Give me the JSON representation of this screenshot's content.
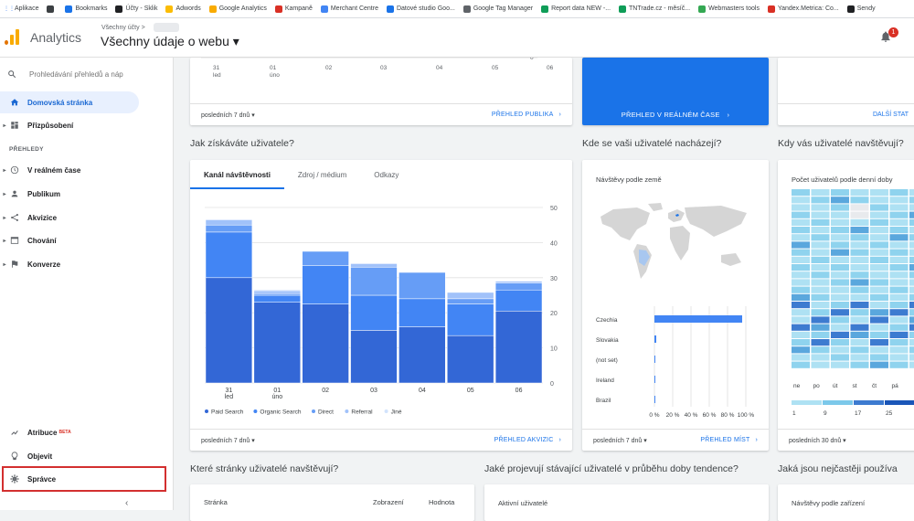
{
  "bookmarks": [
    {
      "label": "Aplikace",
      "icon": "apps-grid-icon",
      "color": "#4285f4"
    },
    {
      "label": "",
      "icon": "globe-icon",
      "color": "#3c4043"
    },
    {
      "label": "Bookmarks",
      "icon": "star-icon",
      "color": "#1a73e8"
    },
    {
      "label": "Účty - Sklik",
      "icon": "sklik-icon",
      "color": "#202124"
    },
    {
      "label": "Adwords",
      "icon": "adwords-icon",
      "color": "#fbbc04"
    },
    {
      "label": "Google Analytics",
      "icon": "analytics-icon",
      "color": "#f9ab00"
    },
    {
      "label": "Kampaně",
      "icon": "campaign-icon",
      "color": "#d93025"
    },
    {
      "label": "Merchant Centre",
      "icon": "google-icon",
      "color": "#4285f4"
    },
    {
      "label": "Datové studio Goo...",
      "icon": "datastudio-icon",
      "color": "#1a73e8"
    },
    {
      "label": "Google Tag Manager",
      "icon": "globe-icon",
      "color": "#5f6368"
    },
    {
      "label": "Report data NEW -...",
      "icon": "sheets-icon",
      "color": "#0f9d58"
    },
    {
      "label": "TNTrade.cz - měsíč...",
      "icon": "sheets-icon",
      "color": "#0f9d58"
    },
    {
      "label": "Webmasters tools",
      "icon": "webmasters-icon",
      "color": "#34a853"
    },
    {
      "label": "Yandex.Metrica: Co...",
      "icon": "yandex-icon",
      "color": "#d93025"
    },
    {
      "label": "Sendy",
      "icon": "sendy-icon",
      "color": "#202124"
    }
  ],
  "header": {
    "brand": "Analytics",
    "account_label": "Všechny účty >",
    "property": "Všechny údaje o webu ▾",
    "notifications": "1"
  },
  "sidebar": {
    "search_placeholder": "Prohledávání přehledů a náp",
    "home": "Domovská stránka",
    "customize": "Přizpůsobení",
    "section_reports": "PŘEHLEDY",
    "realtime": "V reálném čase",
    "audience": "Publikum",
    "acquisition": "Akvizice",
    "behavior": "Chování",
    "conversions": "Konverze",
    "attribution": "Atribuce",
    "attribution_badge": "BETA",
    "discover": "Objevit",
    "admin": "Správce",
    "collapse": "‹"
  },
  "top_card": {
    "x_ticks": [
      "31\nled",
      "01\núno",
      "02",
      "03",
      "04",
      "05",
      "06"
    ],
    "y_tick": "0",
    "period": "posledních 7 dnů ▾",
    "link": "PŘEHLED PUBLIKA"
  },
  "realtime_card": {
    "link": "PŘEHLED V REÁLNÉM ČASE"
  },
  "more_card": {
    "link": "DALŠÍ STAT"
  },
  "acquisition": {
    "title": "Jak získáváte uživatele?",
    "tabs": [
      "Kanál návštěvnosti",
      "Zdroj / médium",
      "Odkazy"
    ],
    "period": "posledních 7 dnů ▾",
    "link": "PŘEHLED AKVIZIC"
  },
  "location": {
    "title": "Kde se vaši uživatelé nacházejí?",
    "subtitle": "Návštěvy podle země",
    "period": "posledních 7 dnů ▾",
    "link": "PŘEHLED MÍST",
    "countries": [
      "Czechia",
      "Slovakia",
      "(not set)",
      "Ireland",
      "Brazil"
    ],
    "values_pct": [
      96,
      2,
      0.6,
      0.5,
      0.3
    ],
    "x_ticks": [
      "0 %",
      "20 %",
      "40 %",
      "60 %",
      "80 %",
      "100 %"
    ]
  },
  "time_card": {
    "title": "Kdy vás uživatelé navštěvují?",
    "subtitle": "Počet uživatelů podle denní doby",
    "days": [
      "ne",
      "po",
      "út",
      "st",
      "čt",
      "pá"
    ],
    "legend_ticks": [
      "1",
      "9",
      "17",
      "25"
    ],
    "period": "posledních 30 dnů ▾"
  },
  "bottom": {
    "pages_title": "Které stránky uživatelé navštěvují?",
    "pages_col1": "Stránka",
    "pages_col2": "Zobrazení",
    "pages_col3": "Hodnota",
    "retention_title": "Jaké projevují stávající uživatelé v průběhu doby tendence?",
    "retention_sub": "Aktivní uživatelé",
    "devices_title": "Jaká jsou nejčastěji používa",
    "devices_sub": "Návštěvy podle zařízení"
  },
  "chart_data": {
    "type": "bar",
    "stacked": true,
    "categories": [
      "31\nled",
      "01\núno",
      "02",
      "03",
      "04",
      "05",
      "06"
    ],
    "ylim": [
      0,
      50
    ],
    "y_ticks": [
      0,
      10,
      20,
      30,
      40,
      50
    ],
    "series": [
      {
        "name": "Paid Search",
        "color": "#3367d6",
        "values": [
          30,
          23,
          22.5,
          15,
          16,
          13.5,
          20.5
        ]
      },
      {
        "name": "Organic Search",
        "color": "#4285f4",
        "values": [
          13,
          2,
          11,
          10,
          8,
          9,
          6
        ]
      },
      {
        "name": "Direct",
        "color": "#669df6",
        "values": [
          2,
          0.5,
          4,
          8,
          7.5,
          1.5,
          2
        ]
      },
      {
        "name": "Referral",
        "color": "#a1c2fa",
        "values": [
          1.5,
          0.8,
          0,
          1,
          0,
          1.8,
          0.5
        ]
      },
      {
        "name": "Jiné",
        "color": "#d2e3fc",
        "values": [
          0,
          0.3,
          0,
          0,
          0,
          0,
          0
        ]
      }
    ]
  }
}
